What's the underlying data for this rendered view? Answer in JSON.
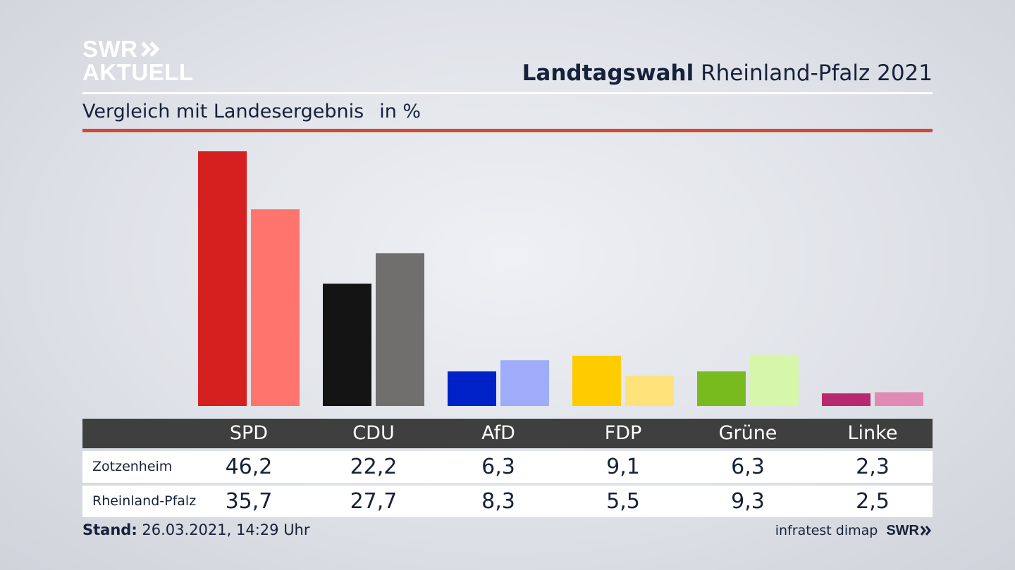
{
  "logo": {
    "swr": "SWR",
    "aktuell": "AKTUELL"
  },
  "header": {
    "title_bold": "Landtagswahl",
    "title_rest": "Rheinland-Pfalz 2021"
  },
  "subtitle": {
    "text": "Vergleich mit Landesergebnis",
    "unit": "in %"
  },
  "chart_data": {
    "type": "bar",
    "categories": [
      "SPD",
      "CDU",
      "AfD",
      "FDP",
      "Grüne",
      "Linke"
    ],
    "series": [
      {
        "name": "Zotzenheim",
        "values": [
          46.2,
          22.2,
          6.3,
          9.1,
          6.3,
          2.3
        ],
        "colors": [
          "#d62020",
          "#141414",
          "#0021c7",
          "#ffcc00",
          "#78bb1e",
          "#b8286e"
        ]
      },
      {
        "name": "Rheinland-Pfalz",
        "values": [
          35.7,
          27.7,
          8.3,
          5.5,
          9.3,
          2.5
        ],
        "colors": [
          "#ff746c",
          "#706f6d",
          "#9eacfa",
          "#ffe27a",
          "#d6f6aa",
          "#e08ab6"
        ]
      }
    ],
    "ylim": [
      0,
      46.2
    ],
    "grid": false
  },
  "table": {
    "rows": [
      {
        "label": "Zotzenheim",
        "values": [
          "46,2",
          "22,2",
          "6,3",
          "9,1",
          "6,3",
          "2,3"
        ]
      },
      {
        "label": "Rheinland-Pfalz",
        "values": [
          "35,7",
          "27,7",
          "8,3",
          "5,5",
          "9,3",
          "2,5"
        ]
      }
    ]
  },
  "footer": {
    "stand_label": "Stand:",
    "stand_value": "26.03.2021, 14:29 Uhr",
    "source": "infratest dimap",
    "brand": "SWR"
  },
  "colors": {
    "accent_red": "#cf4a3b",
    "text": "#16213a",
    "table_header": "#3f3f3f"
  }
}
